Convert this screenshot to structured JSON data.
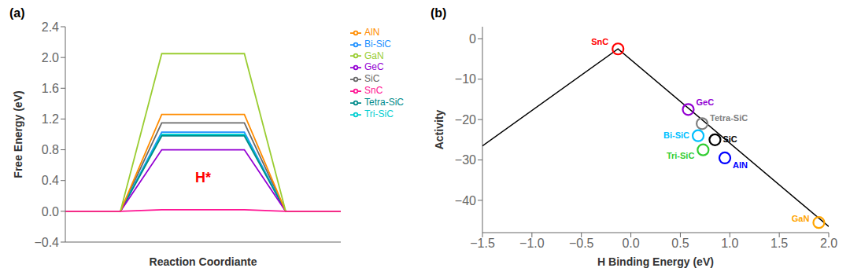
{
  "chart_data": [
    {
      "type": "line",
      "title": "(a)",
      "xlabel": "Reaction Coordiante",
      "ylabel": "Free Energy (eV)",
      "x": [
        0.0,
        0.2,
        0.35,
        0.65,
        0.8,
        1.0
      ],
      "xlim": [
        0,
        1
      ],
      "ylim": [
        -0.4,
        2.4
      ],
      "yticks": [
        {
          "value": -0.4,
          "label": "−0.4"
        },
        {
          "value": 0,
          "label": "0.0"
        },
        0.4,
        0.8,
        1.2,
        1.6,
        {
          "value": 2,
          "label": "2.0"
        },
        2.4
      ],
      "tick_labels": "y",
      "legend": "upper right",
      "annotations": [
        {
          "text": "H*",
          "color": "red"
        }
      ],
      "series": [
        {
          "name": "SiC",
          "color": "#696969",
          "values": [
            0,
            0,
            1.15,
            1.15,
            0,
            0
          ]
        },
        {
          "name": "Bi-SiC",
          "color": "#1E90FF",
          "values": [
            0,
            0,
            1.03,
            1.03,
            0,
            0
          ]
        },
        {
          "name": "Tri-SiC",
          "color": "#00CED1",
          "values": [
            0,
            0,
            1.0,
            1.0,
            0,
            0
          ]
        },
        {
          "name": "Tetra-SiC",
          "color": "#008B8B",
          "values": [
            0,
            0,
            0.98,
            0.98,
            0,
            0
          ]
        },
        {
          "name": "GeC",
          "color": "#9400D3",
          "values": [
            0,
            0,
            0.8,
            0.8,
            0,
            0
          ]
        },
        {
          "name": "AlN",
          "color": "#FF8C00",
          "values": [
            0,
            0,
            1.26,
            1.26,
            0,
            0
          ]
        },
        {
          "name": "GaN",
          "color": "#9ACD32",
          "values": [
            0,
            0,
            2.05,
            2.05,
            0,
            0
          ]
        },
        {
          "name": "SnC",
          "color": "#FF1493",
          "values": [
            0,
            0,
            0.02,
            0.02,
            0,
            0
          ]
        }
      ]
    },
    {
      "type": "scatter",
      "title": "(b)",
      "xlabel": "H Binding Energy (eV)",
      "ylabel": "Activity",
      "xlim": [
        -1.5,
        2.0
      ],
      "ylim": [
        -48,
        3
      ],
      "xticks": [
        {
          "value": -1.5,
          "label": "−1.5"
        },
        {
          "value": -1,
          "label": "−1.0"
        },
        {
          "value": -0.5,
          "label": "−0.5"
        },
        {
          "value": 0,
          "label": "0.0"
        },
        0.5,
        {
          "value": 1,
          "label": "1.0"
        },
        1.5,
        {
          "value": 2,
          "label": "2.0"
        }
      ],
      "yticks": [
        0,
        {
          "value": -10,
          "label": "−10"
        },
        {
          "value": -20,
          "label": "−20"
        },
        {
          "value": -30,
          "label": "−30"
        },
        {
          "value": -40,
          "label": "−40"
        }
      ],
      "series": [
        {
          "type": "line",
          "color": "#000000",
          "x": [
            -1.5,
            -0.13,
            2.0
          ],
          "values": [
            -26.5,
            -2.5,
            -46.5
          ]
        },
        {
          "type": "scatter",
          "marker": "circle",
          "labels": [
            "SnC",
            "GeC",
            "Tetra-SiC",
            "Bi-SiC",
            "Tri-SiC",
            "SiC",
            "AlN",
            "GaN"
          ],
          "colors": [
            "#FF0000",
            "#9400D3",
            "#808080",
            "#00BFFF",
            "#32CD32",
            "#000000",
            "#0000FF",
            "#FFA500"
          ],
          "x": [
            -0.13,
            0.58,
            0.72,
            0.68,
            0.73,
            0.85,
            0.95,
            1.9
          ],
          "values": [
            -2.5,
            -17.5,
            -21.0,
            -24.0,
            -27.5,
            -25.0,
            -29.5,
            -45.5
          ]
        }
      ]
    }
  ]
}
